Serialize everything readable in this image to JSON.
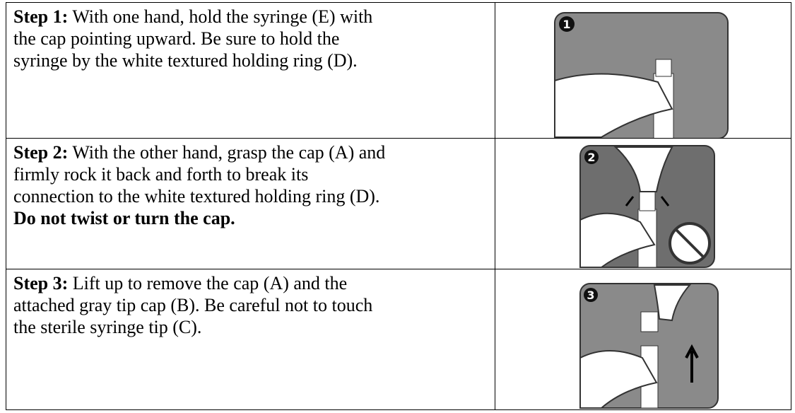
{
  "table": {
    "rows": [
      {
        "label": "Step 1:",
        "lines": [
          "With one hand, hold the syringe (E) with",
          "the cap pointing upward. Be sure to hold the",
          "syringe by the white textured holding ring (D)."
        ],
        "badge": "1"
      },
      {
        "label": "Step 2:",
        "lines": [
          "With the other hand, grasp the cap (A) and",
          "firmly rock it back and forth to break its",
          "connection to the white textured holding ring (D)."
        ],
        "warning": "Do not twist or turn the cap.",
        "badge": "2"
      },
      {
        "label": "Step 3:",
        "lines": [
          "Lift up to remove the cap (A) and the",
          "attached gray tip cap (B). Be careful not to touch",
          "the sterile syringe tip (C)."
        ],
        "badge": "3"
      }
    ]
  }
}
